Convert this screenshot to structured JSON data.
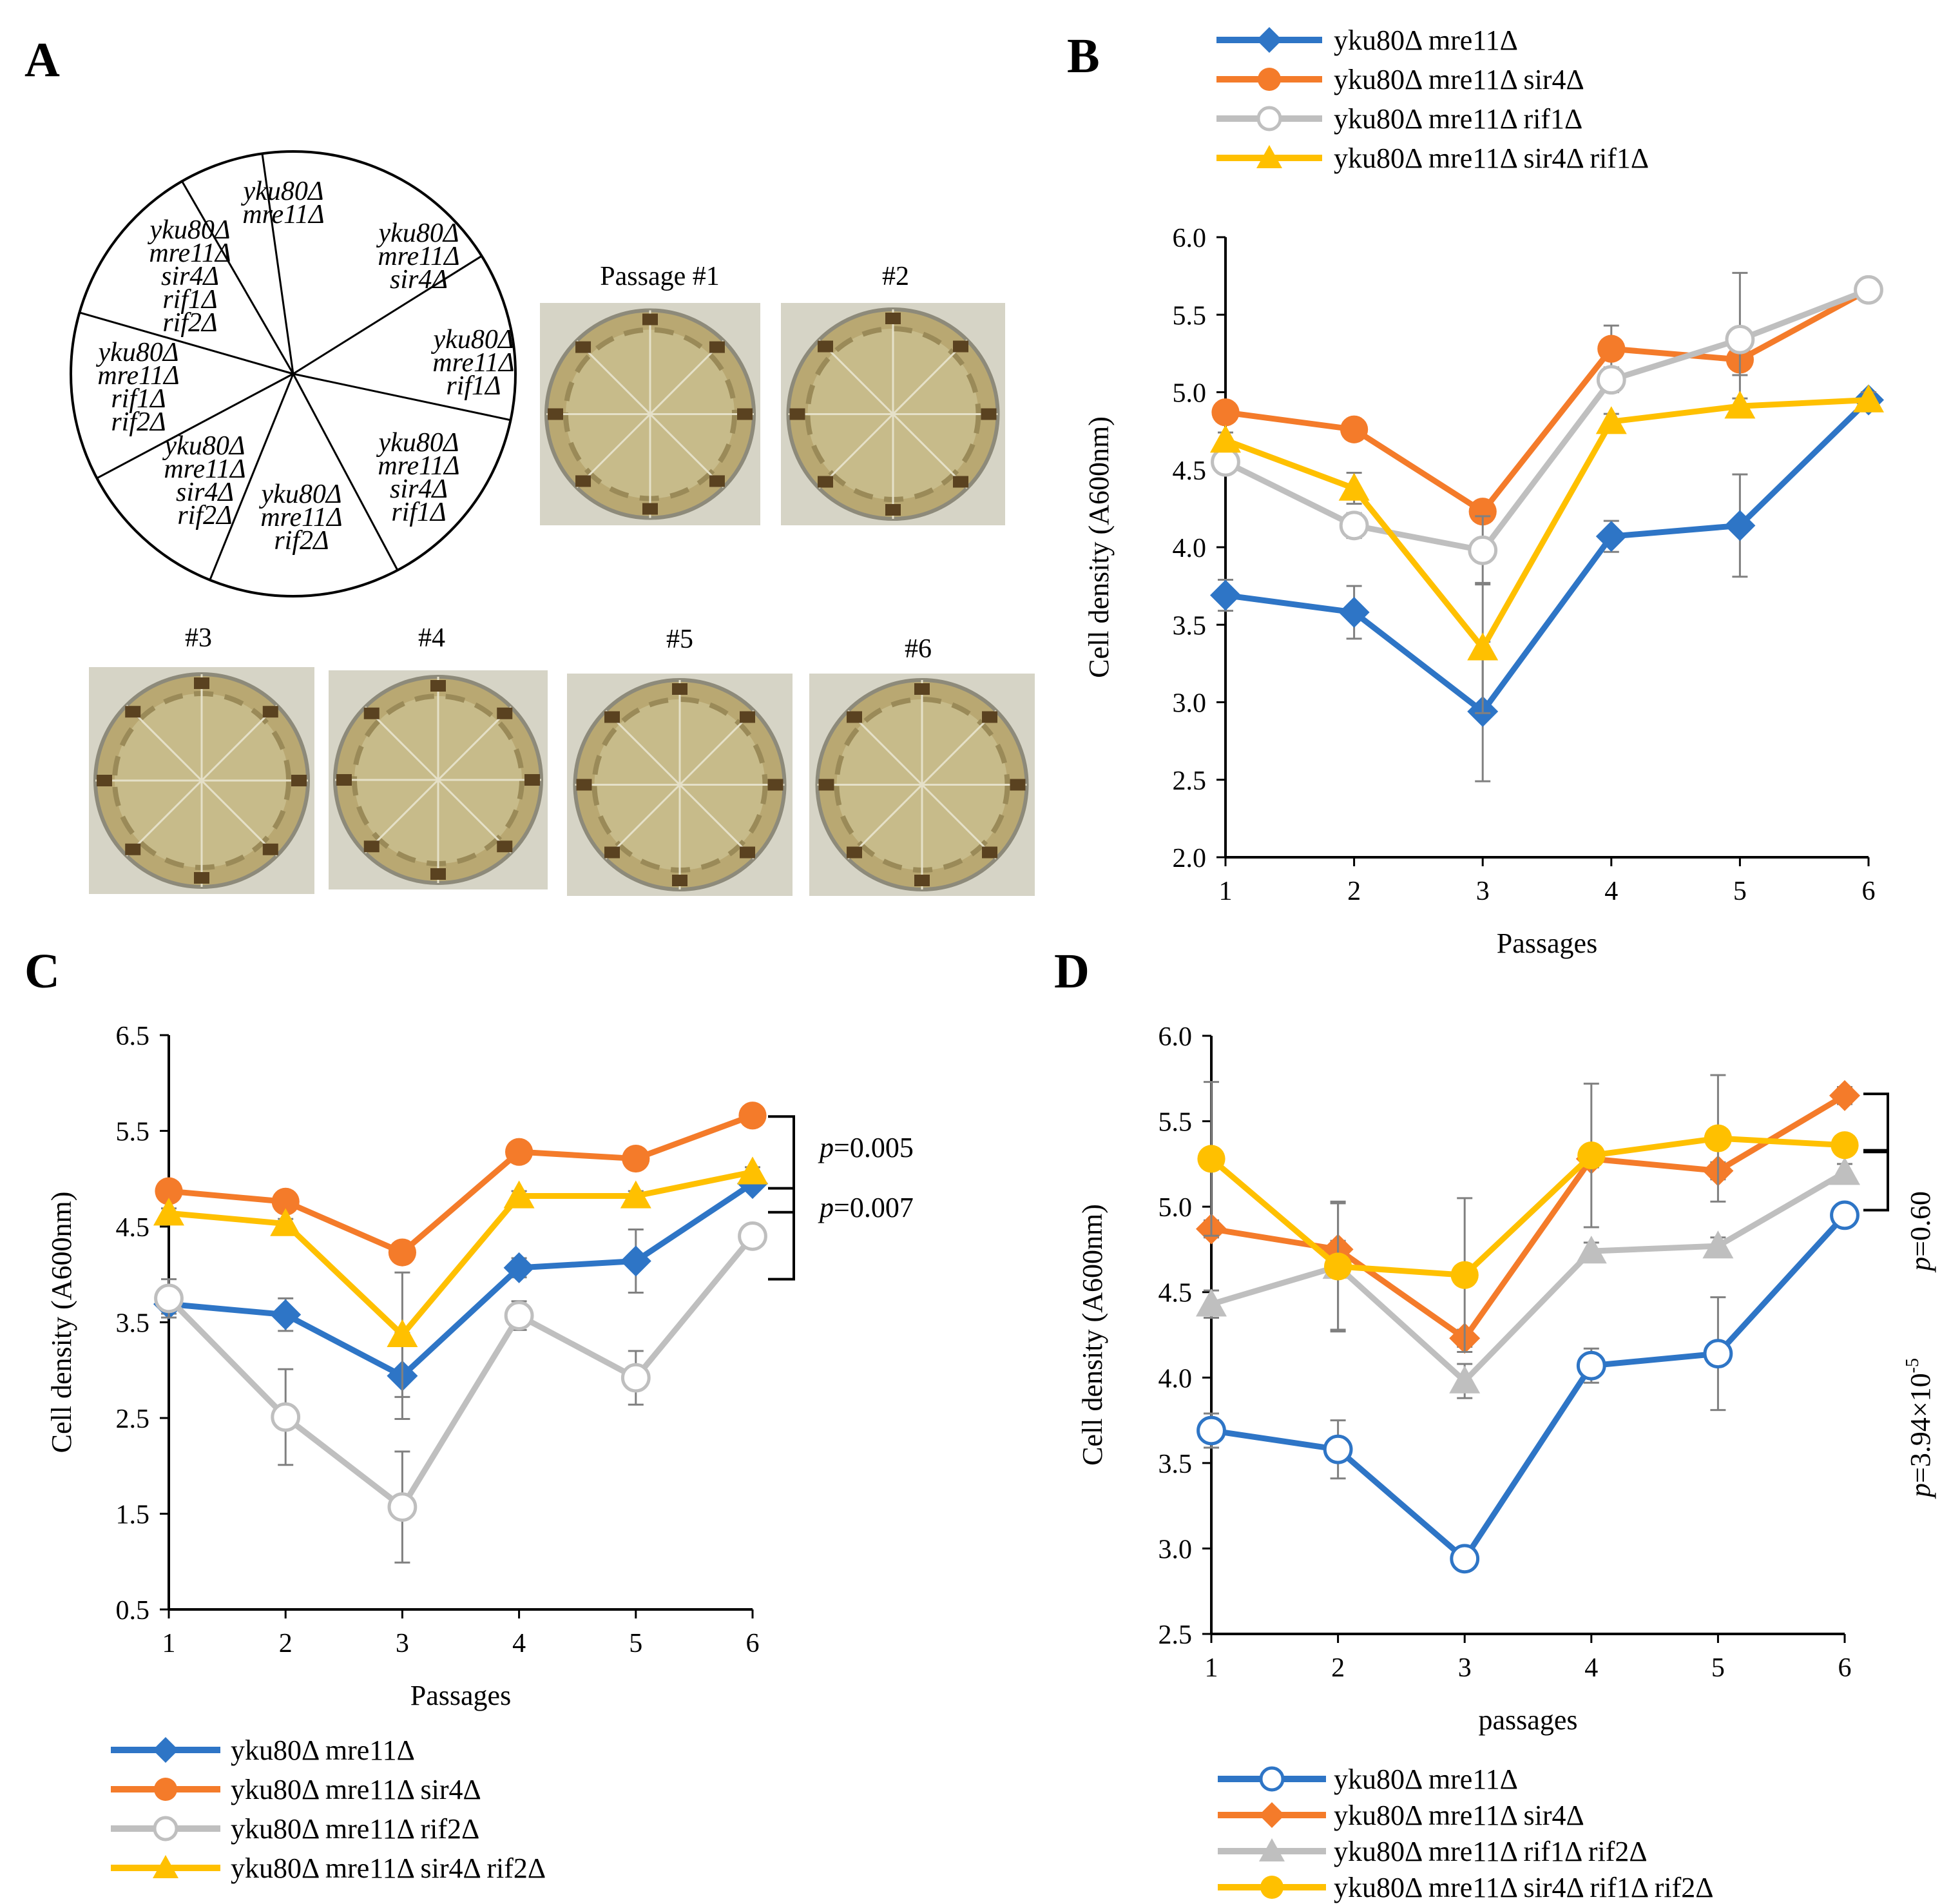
{
  "panels": {
    "A": "A",
    "B": "B",
    "C": "C",
    "D": "D"
  },
  "colors": {
    "blue": "#2E75C6",
    "orange": "#F47B2A",
    "gray": "#BFBFBF",
    "yellow": "#FFC000",
    "err": "#808080"
  },
  "panelA": {
    "wheel_labels": [
      [
        "yku80Δ",
        "mre11Δ"
      ],
      [
        "yku80Δ",
        "mre11Δ",
        "sir4Δ"
      ],
      [
        "yku80Δ",
        "mre11Δ",
        "rif1Δ"
      ],
      [
        "yku80Δ",
        "mre11Δ",
        "sir4Δ",
        "rif1Δ"
      ],
      [
        "yku80Δ",
        "mre11Δ",
        "rif2Δ"
      ],
      [
        "yku80Δ",
        "mre11Δ",
        "sir4Δ",
        "rif2Δ"
      ],
      [
        "yku80Δ",
        "mre11Δ",
        "rif1Δ",
        "rif2Δ"
      ],
      [
        "yku80Δ",
        "mre11Δ",
        "sir4Δ",
        "rif1Δ",
        "rif2Δ"
      ]
    ],
    "plates": [
      "Passage #1",
      "#2",
      "#3",
      "#4",
      "#5",
      "#6"
    ]
  },
  "chart_data": [
    {
      "id": "B",
      "type": "line",
      "x": [
        1,
        2,
        3,
        4,
        5,
        6
      ],
      "ylim": [
        2.0,
        6.0
      ],
      "yticks": [
        "2.0",
        "2.5",
        "3.0",
        "3.5",
        "4.0",
        "4.5",
        "5.0",
        "5.5",
        "6.0"
      ],
      "ytick_values": [
        2.0,
        2.5,
        3.0,
        3.5,
        4.0,
        4.5,
        5.0,
        5.5,
        6.0
      ],
      "xticks": [
        "1",
        "2",
        "3",
        "4",
        "5",
        "6"
      ],
      "xlabel": "Passages",
      "ylabel": "Cell density (A600nm)",
      "legend_position": "top",
      "series": [
        {
          "name": "yku80Δ mre11Δ",
          "color": "blue",
          "marker": "diamond",
          "values": [
            3.69,
            3.58,
            2.94,
            4.07,
            4.14,
            4.95
          ],
          "err": [
            0.1,
            0.17,
            0.45,
            0.1,
            0.33,
            0.05
          ]
        },
        {
          "name": "yku80Δ mre11Δ sir4Δ",
          "color": "orange",
          "marker": "circle",
          "values": [
            4.87,
            4.76,
            4.23,
            5.28,
            5.21,
            5.66
          ],
          "err": [
            0.05,
            0.05,
            0.05,
            0.15,
            0.1,
            0.05
          ]
        },
        {
          "name": "yku80Δ mre11Δ rif1Δ",
          "color": "gray",
          "marker": "ocircle",
          "values": [
            4.55,
            4.14,
            3.98,
            5.08,
            5.34,
            5.66
          ],
          "err": [
            0.05,
            0.08,
            0.22,
            0.08,
            0.43,
            0.05
          ]
        },
        {
          "name": "yku80Δ mre11Δ sir4Δ rif1Δ",
          "color": "yellow",
          "marker": "triangle",
          "values": [
            4.69,
            4.38,
            3.35,
            4.81,
            4.91,
            4.95
          ],
          "err": [
            0.05,
            0.1,
            0.42,
            0.05,
            0.05,
            0.05
          ]
        }
      ]
    },
    {
      "id": "C",
      "type": "line",
      "x": [
        1,
        2,
        3,
        4,
        5,
        6
      ],
      "ylim": [
        0.5,
        6.5
      ],
      "yticks": [
        "0.5",
        "1.5",
        "2.5",
        "3.5",
        "4.5",
        "5.5",
        "6.5"
      ],
      "ytick_values": [
        0.5,
        1.5,
        2.5,
        3.5,
        4.5,
        5.5,
        6.5
      ],
      "xticks": [
        "1",
        "2",
        "3",
        "4",
        "5",
        "6"
      ],
      "xlabel": "Passages",
      "ylabel": "Cell density (A600nm)",
      "legend_position": "bottom",
      "annotations": [
        {
          "label": "p",
          "text": "=0.005"
        },
        {
          "label": "p",
          "text": "=0.007"
        }
      ],
      "series": [
        {
          "name": "yku80Δ mre11Δ",
          "color": "blue",
          "marker": "diamond",
          "values": [
            3.69,
            3.58,
            2.94,
            4.07,
            4.14,
            4.95
          ],
          "err": [
            0.1,
            0.17,
            0.45,
            0.1,
            0.33,
            0.05
          ]
        },
        {
          "name": "yku80Δ mre11Δ sir4Δ",
          "color": "orange",
          "marker": "circle",
          "values": [
            4.87,
            4.76,
            4.23,
            5.28,
            5.21,
            5.66
          ],
          "err": [
            0.05,
            0.05,
            0.05,
            0.05,
            0.05,
            0.05
          ]
        },
        {
          "name": " yku80Δ mre11Δ rif2Δ",
          "color": "gray",
          "marker": "ocircle",
          "values": [
            3.75,
            2.51,
            1.57,
            3.57,
            2.92,
            4.4
          ],
          "err": [
            0.2,
            0.5,
            0.58,
            0.15,
            0.28,
            0.05
          ]
        },
        {
          "name": " yku80Δ mre11Δ sir4Δ rif2Δ",
          "color": "yellow",
          "marker": "triangle",
          "values": [
            4.64,
            4.53,
            3.37,
            4.82,
            4.82,
            5.07
          ],
          "err": [
            0.05,
            0.05,
            0.65,
            0.05,
            0.05,
            0.05
          ]
        }
      ]
    },
    {
      "id": "D",
      "type": "line",
      "x": [
        1,
        2,
        3,
        4,
        5,
        6
      ],
      "ylim": [
        2.5,
        6.0
      ],
      "yticks": [
        "2.5",
        "3.0",
        "3.5",
        "4.0",
        "4.5",
        "5.0",
        "5.5",
        "6.0"
      ],
      "ytick_values": [
        2.5,
        3.0,
        3.5,
        4.0,
        4.5,
        5.0,
        5.5,
        6.0
      ],
      "xticks": [
        "1",
        "2",
        "3",
        "4",
        "5",
        "6"
      ],
      "xlabel": "passages",
      "ylabel": "Cell density (A600nm)",
      "legend_position": "bottom",
      "annotations": [
        {
          "label": "p",
          "text": "=0.60"
        },
        {
          "label": "p",
          "text": "=3.94×10",
          "sup": "-5"
        }
      ],
      "series": [
        {
          "name": "yku80Δ mre11Δ",
          "color": "blue",
          "marker": "ocircle",
          "values": [
            3.69,
            3.58,
            2.94,
            4.07,
            4.14,
            4.95
          ],
          "err": [
            0.1,
            0.17,
            0.05,
            0.1,
            0.33,
            0.05
          ]
        },
        {
          "name": "yku80Δ mre11Δ sir4Δ",
          "color": "orange",
          "marker": "diamond",
          "values": [
            4.87,
            4.75,
            4.23,
            5.28,
            5.21,
            5.65
          ],
          "err": [
            0.05,
            0.05,
            0.05,
            0.05,
            0.05,
            0.05
          ]
        },
        {
          "name": "yku80Δ mre11Δ rif1Δ rif2Δ",
          "color": "gray",
          "marker": "triangle",
          "values": [
            4.43,
            4.65,
            3.98,
            4.74,
            4.77,
            5.2
          ],
          "err": [
            0.08,
            0.38,
            0.1,
            0.05,
            0.05,
            0.05
          ]
        },
        {
          "name": "yku80Δ mre11Δ sir4Δ rif1Δ rif2Δ",
          "color": "yellow",
          "marker": "circle",
          "values": [
            5.28,
            4.65,
            4.6,
            5.3,
            5.4,
            5.36
          ],
          "err": [
            0.45,
            0.37,
            0.45,
            0.42,
            0.37,
            0.05
          ]
        }
      ]
    }
  ]
}
